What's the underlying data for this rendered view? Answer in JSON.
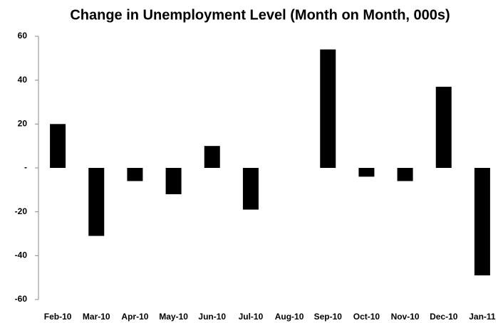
{
  "chart_data": {
    "type": "bar",
    "title": "Change in Unemployment Level (Month on Month, 000s)",
    "categories": [
      "Feb-10",
      "Mar-10",
      "Apr-10",
      "May-10",
      "Jun-10",
      "Jul-10",
      "Aug-10",
      "Sep-10",
      "Oct-10",
      "Nov-10",
      "Dec-10",
      "Jan-11"
    ],
    "values": [
      20,
      -31,
      -6,
      -12,
      10,
      -19,
      0,
      54,
      -4,
      -6,
      37,
      -49
    ],
    "color": "#000000",
    "ylim": [
      -60,
      60
    ],
    "yticks": [
      -60,
      -40,
      -20,
      {
        "value": 0,
        "label": "-"
      },
      20,
      40,
      60
    ],
    "grid": false
  }
}
